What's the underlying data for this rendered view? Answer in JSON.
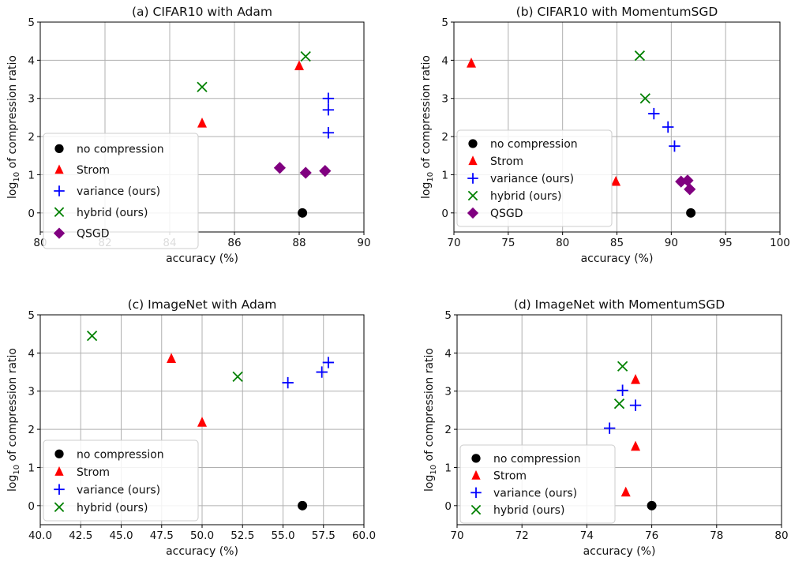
{
  "figure": {
    "colors": {
      "no_compression": "#000000",
      "strom": "#ff0000",
      "variance": "#0000ff",
      "hybrid": "#008000",
      "qsgd": "#800080",
      "grid": "#b0b0b0"
    }
  },
  "chart_data": [
    {
      "type": "scatter",
      "title": "(a) CIFAR10 with Adam",
      "xlabel": "accuracy (%)",
      "ylabel_prefix": "log",
      "ylabel_sub": "10",
      "ylabel_suffix": " of compression ratio",
      "xlim": [
        80,
        90
      ],
      "ylim": [
        -0.5,
        5
      ],
      "xticks": [
        80,
        82,
        84,
        86,
        88,
        90
      ],
      "xtick_labels": [
        "80",
        "82",
        "84",
        "86",
        "88",
        "90"
      ],
      "yticks": [
        0,
        1,
        2,
        3,
        4,
        5
      ],
      "ytick_labels": [
        "0",
        "1",
        "2",
        "3",
        "4",
        "5"
      ],
      "grid": true,
      "legend_position": "lower-left",
      "series": [
        {
          "name": "no compression",
          "marker": "circle",
          "color": "#000000",
          "points": [
            [
              88.1,
              0.0
            ]
          ]
        },
        {
          "name": "Strom",
          "marker": "triangle",
          "color": "#ff0000",
          "points": [
            [
              85.0,
              2.35
            ],
            [
              88.0,
              3.85
            ]
          ]
        },
        {
          "name": "variance (ours)",
          "marker": "plus",
          "color": "#0000ff",
          "points": [
            [
              88.9,
              2.1
            ],
            [
              88.9,
              2.7
            ],
            [
              88.9,
              3.0
            ]
          ]
        },
        {
          "name": "hybrid (ours)",
          "marker": "x",
          "color": "#008000",
          "points": [
            [
              85.0,
              3.3
            ],
            [
              88.2,
              4.1
            ]
          ]
        },
        {
          "name": "QSGD",
          "marker": "diamond",
          "color": "#800080",
          "points": [
            [
              87.4,
              1.18
            ],
            [
              88.2,
              1.05
            ],
            [
              88.8,
              1.1
            ]
          ]
        }
      ]
    },
    {
      "type": "scatter",
      "title": "(b) CIFAR10 with MomentumSGD",
      "xlabel": "accuracy (%)",
      "ylabel_prefix": "log",
      "ylabel_sub": "10",
      "ylabel_suffix": " of compression ratio",
      "xlim": [
        70,
        100
      ],
      "ylim": [
        -0.5,
        5
      ],
      "xticks": [
        70,
        75,
        80,
        85,
        90,
        95,
        100
      ],
      "xtick_labels": [
        "70",
        "75",
        "80",
        "85",
        "90",
        "95",
        "100"
      ],
      "yticks": [
        0,
        1,
        2,
        3,
        4,
        5
      ],
      "ytick_labels": [
        "0",
        "1",
        "2",
        "3",
        "4",
        "5"
      ],
      "grid": true,
      "legend_position": "lower-left",
      "series": [
        {
          "name": "no compression",
          "marker": "circle",
          "color": "#000000",
          "points": [
            [
              91.8,
              0.0
            ]
          ]
        },
        {
          "name": "Strom",
          "marker": "triangle",
          "color": "#ff0000",
          "points": [
            [
              71.6,
              3.92
            ],
            [
              84.9,
              0.82
            ]
          ]
        },
        {
          "name": "variance (ours)",
          "marker": "plus",
          "color": "#0000ff",
          "points": [
            [
              88.4,
              2.6
            ],
            [
              89.7,
              2.25
            ],
            [
              90.3,
              1.75
            ]
          ]
        },
        {
          "name": "hybrid (ours)",
          "marker": "x",
          "color": "#008000",
          "points": [
            [
              87.1,
              4.12
            ],
            [
              87.6,
              3.0
            ]
          ]
        },
        {
          "name": "QSGD",
          "marker": "diamond",
          "color": "#800080",
          "points": [
            [
              90.9,
              0.82
            ],
            [
              91.5,
              0.85
            ],
            [
              91.7,
              0.62
            ]
          ]
        }
      ]
    },
    {
      "type": "scatter",
      "title": "(c) ImageNet with Adam",
      "xlabel": "accuracy (%)",
      "ylabel_prefix": "log",
      "ylabel_sub": "10",
      "ylabel_suffix": " of compression ratio",
      "xlim": [
        40,
        60
      ],
      "ylim": [
        -0.5,
        5
      ],
      "xticks": [
        40,
        42.5,
        45,
        47.5,
        50,
        52.5,
        55,
        57.5,
        60
      ],
      "xtick_labels": [
        "40.0",
        "42.5",
        "45.0",
        "47.5",
        "50.0",
        "52.5",
        "55.0",
        "57.5",
        "60.0"
      ],
      "yticks": [
        0,
        1,
        2,
        3,
        4,
        5
      ],
      "ytick_labels": [
        "0",
        "1",
        "2",
        "3",
        "4",
        "5"
      ],
      "grid": true,
      "legend_position": "lower-left",
      "series": [
        {
          "name": "no compression",
          "marker": "circle",
          "color": "#000000",
          "points": [
            [
              56.2,
              0.0
            ]
          ]
        },
        {
          "name": "Strom",
          "marker": "triangle",
          "color": "#ff0000",
          "points": [
            [
              48.1,
              3.85
            ],
            [
              50.0,
              2.18
            ]
          ]
        },
        {
          "name": "variance (ours)",
          "marker": "plus",
          "color": "#0000ff",
          "points": [
            [
              55.3,
              3.22
            ],
            [
              57.4,
              3.5
            ],
            [
              57.8,
              3.75
            ]
          ]
        },
        {
          "name": "hybrid (ours)",
          "marker": "x",
          "color": "#008000",
          "points": [
            [
              43.2,
              4.45
            ],
            [
              52.2,
              3.38
            ]
          ]
        }
      ]
    },
    {
      "type": "scatter",
      "title": "(d) ImageNet with MomentumSGD",
      "xlabel": "accuracy (%)",
      "ylabel_prefix": "log",
      "ylabel_sub": "10",
      "ylabel_suffix": " of compression ratio",
      "xlim": [
        70,
        80
      ],
      "ylim": [
        -0.5,
        5
      ],
      "xticks": [
        70,
        72,
        74,
        76,
        78,
        80
      ],
      "xtick_labels": [
        "70",
        "72",
        "74",
        "76",
        "78",
        "80"
      ],
      "yticks": [
        0,
        1,
        2,
        3,
        4,
        5
      ],
      "ytick_labels": [
        "0",
        "1",
        "2",
        "3",
        "4",
        "5"
      ],
      "grid": true,
      "legend_position": "lower-left",
      "series": [
        {
          "name": "no compression",
          "marker": "circle",
          "color": "#000000",
          "points": [
            [
              76.0,
              0.0
            ]
          ]
        },
        {
          "name": "Strom",
          "marker": "triangle",
          "color": "#ff0000",
          "points": [
            [
              75.5,
              3.3
            ],
            [
              75.5,
              1.55
            ],
            [
              75.2,
              0.35
            ]
          ]
        },
        {
          "name": "variance (ours)",
          "marker": "plus",
          "color": "#0000ff",
          "points": [
            [
              75.1,
              3.02
            ],
            [
              75.5,
              2.63
            ],
            [
              74.7,
              2.03
            ]
          ]
        },
        {
          "name": "hybrid (ours)",
          "marker": "x",
          "color": "#008000",
          "points": [
            [
              75.1,
              3.65
            ],
            [
              75.0,
              2.67
            ]
          ]
        }
      ]
    }
  ]
}
